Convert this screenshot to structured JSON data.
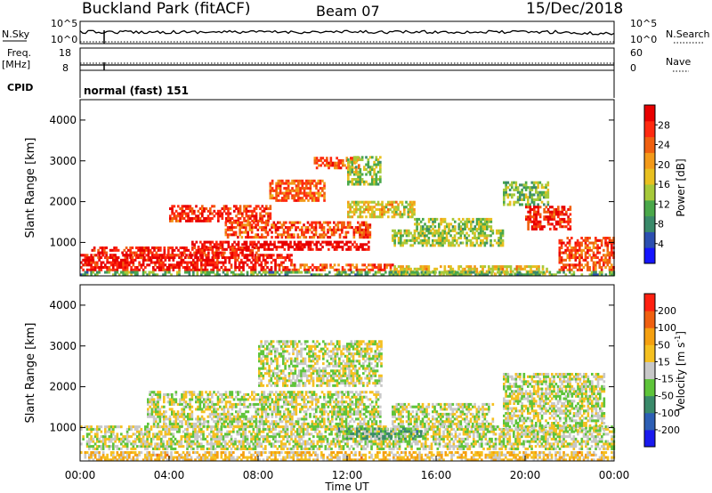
{
  "header": {
    "station": "Buckland Park (fitACF)",
    "beam": "Beam 07",
    "date": "15/Dec/2018"
  },
  "top_panels": {
    "nsky_label": "N.Sky",
    "nsky_ticks": [
      "10^5",
      "10^0"
    ],
    "nsearch_label": "N.Search",
    "nsearch_ticks": [
      "10^5",
      "10^0"
    ],
    "freq_label_1": "Freq.",
    "freq_label_2": "[MHz]",
    "freq_ticks": [
      "18",
      "8"
    ],
    "nave_label": "Nave",
    "nave_ticks": [
      "60",
      "0"
    ],
    "cpid_label": "CPID",
    "cpid_value": "normal (fast) 151"
  },
  "chart_data": [
    {
      "type": "heatmap",
      "name": "power",
      "ylabel": "Slant Range [km]",
      "yticks": [
        "4000",
        "3000",
        "2000",
        "1000"
      ],
      "ylim": [
        180,
        4500
      ],
      "xlim": [
        0,
        24
      ],
      "colorbar_label": "Power [dB]",
      "colorbar_ticks": [
        "28",
        "24",
        "20",
        "16",
        "12",
        "8",
        "4"
      ],
      "colors": [
        "#1515ff",
        "#2c4fb0",
        "#3a8a6a",
        "#4aa84a",
        "#a6c93a",
        "#e8c020",
        "#f39a1a",
        "#f06010",
        "#ff2a10",
        "#e80000"
      ],
      "regions": [
        {
          "t0": 0.0,
          "t1": 9.5,
          "r0": 300,
          "r1": 700,
          "level": 0.92
        },
        {
          "t0": 9.5,
          "t1": 14.0,
          "r0": 300,
          "r1": 450,
          "level": 0.8
        },
        {
          "t0": 14.0,
          "t1": 21.0,
          "r0": 200,
          "r1": 400,
          "level": 0.55
        },
        {
          "t0": 5.0,
          "t1": 13.0,
          "r0": 800,
          "r1": 1000,
          "level": 0.97
        },
        {
          "t0": 0.5,
          "t1": 8.0,
          "r0": 600,
          "r1": 900,
          "level": 0.88
        },
        {
          "t0": 4.0,
          "t1": 8.5,
          "r0": 1500,
          "r1": 1900,
          "level": 0.85
        },
        {
          "t0": 6.5,
          "t1": 13.0,
          "r0": 1100,
          "r1": 1500,
          "level": 0.8
        },
        {
          "t0": 8.5,
          "t1": 11.0,
          "r0": 2000,
          "r1": 2500,
          "level": 0.75
        },
        {
          "t0": 10.5,
          "t1": 12.5,
          "r0": 2800,
          "r1": 3100,
          "level": 0.78
        },
        {
          "t0": 12.0,
          "t1": 13.5,
          "r0": 2400,
          "r1": 3100,
          "level": 0.45
        },
        {
          "t0": 12.0,
          "t1": 15.0,
          "r0": 1600,
          "r1": 2000,
          "level": 0.55
        },
        {
          "t0": 14.0,
          "t1": 19.0,
          "r0": 900,
          "r1": 1300,
          "level": 0.45
        },
        {
          "t0": 15.0,
          "t1": 18.5,
          "r0": 1300,
          "r1": 1600,
          "level": 0.45
        },
        {
          "t0": 19.0,
          "t1": 21.0,
          "r0": 1900,
          "r1": 2500,
          "level": 0.4
        },
        {
          "t0": 20.0,
          "t1": 22.0,
          "r0": 1300,
          "r1": 1900,
          "level": 0.85
        },
        {
          "t0": 21.5,
          "t1": 24.0,
          "r0": 300,
          "r1": 1100,
          "level": 0.82
        },
        {
          "t0": 0.0,
          "t1": 24.0,
          "r0": 180,
          "r1": 300,
          "level": 0.35
        }
      ]
    },
    {
      "type": "heatmap",
      "name": "velocity",
      "ylabel": "Slant Range [km]",
      "yticks": [
        "4000",
        "3000",
        "2000",
        "1000"
      ],
      "ylim": [
        180,
        4500
      ],
      "xlim": [
        0,
        24
      ],
      "xlabel": "Time UT",
      "xticks": [
        "00:00",
        "04:00",
        "08:00",
        "12:00",
        "16:00",
        "20:00",
        "00:00"
      ],
      "colorbar_label": "Velocity [m s",
      "colorbar_label_sup": "-1",
      "colorbar_label_close": "]",
      "colorbar_ticks": [
        "200",
        "100",
        "50",
        "15",
        "-15",
        "-50",
        "-100",
        "-200"
      ],
      "colors": [
        "#1a1aee",
        "#2d5fb5",
        "#3a8a6a",
        "#5ec43a",
        "#c8c8c8",
        "#f5c020",
        "#f5a010",
        "#f06010",
        "#ff2010"
      ],
      "regions": [
        {
          "t0": 0.0,
          "t1": 24.0,
          "r0": 450,
          "r1": 1000,
          "level": 0.5
        },
        {
          "t0": 3.0,
          "t1": 13.5,
          "r0": 1000,
          "r1": 1900,
          "level": 0.5
        },
        {
          "t0": 8.0,
          "t1": 13.5,
          "r0": 2000,
          "r1": 3100,
          "level": 0.5
        },
        {
          "t0": 11.5,
          "t1": 15.5,
          "r0": 700,
          "r1": 1000,
          "level": 0.38
        },
        {
          "t0": 14.0,
          "t1": 18.5,
          "r0": 1000,
          "r1": 1600,
          "level": 0.5
        },
        {
          "t0": 19.0,
          "t1": 23.5,
          "r0": 900,
          "r1": 2300,
          "level": 0.5
        },
        {
          "t0": 0.0,
          "t1": 24.0,
          "r0": 180,
          "r1": 400,
          "level": 0.62
        }
      ]
    }
  ]
}
